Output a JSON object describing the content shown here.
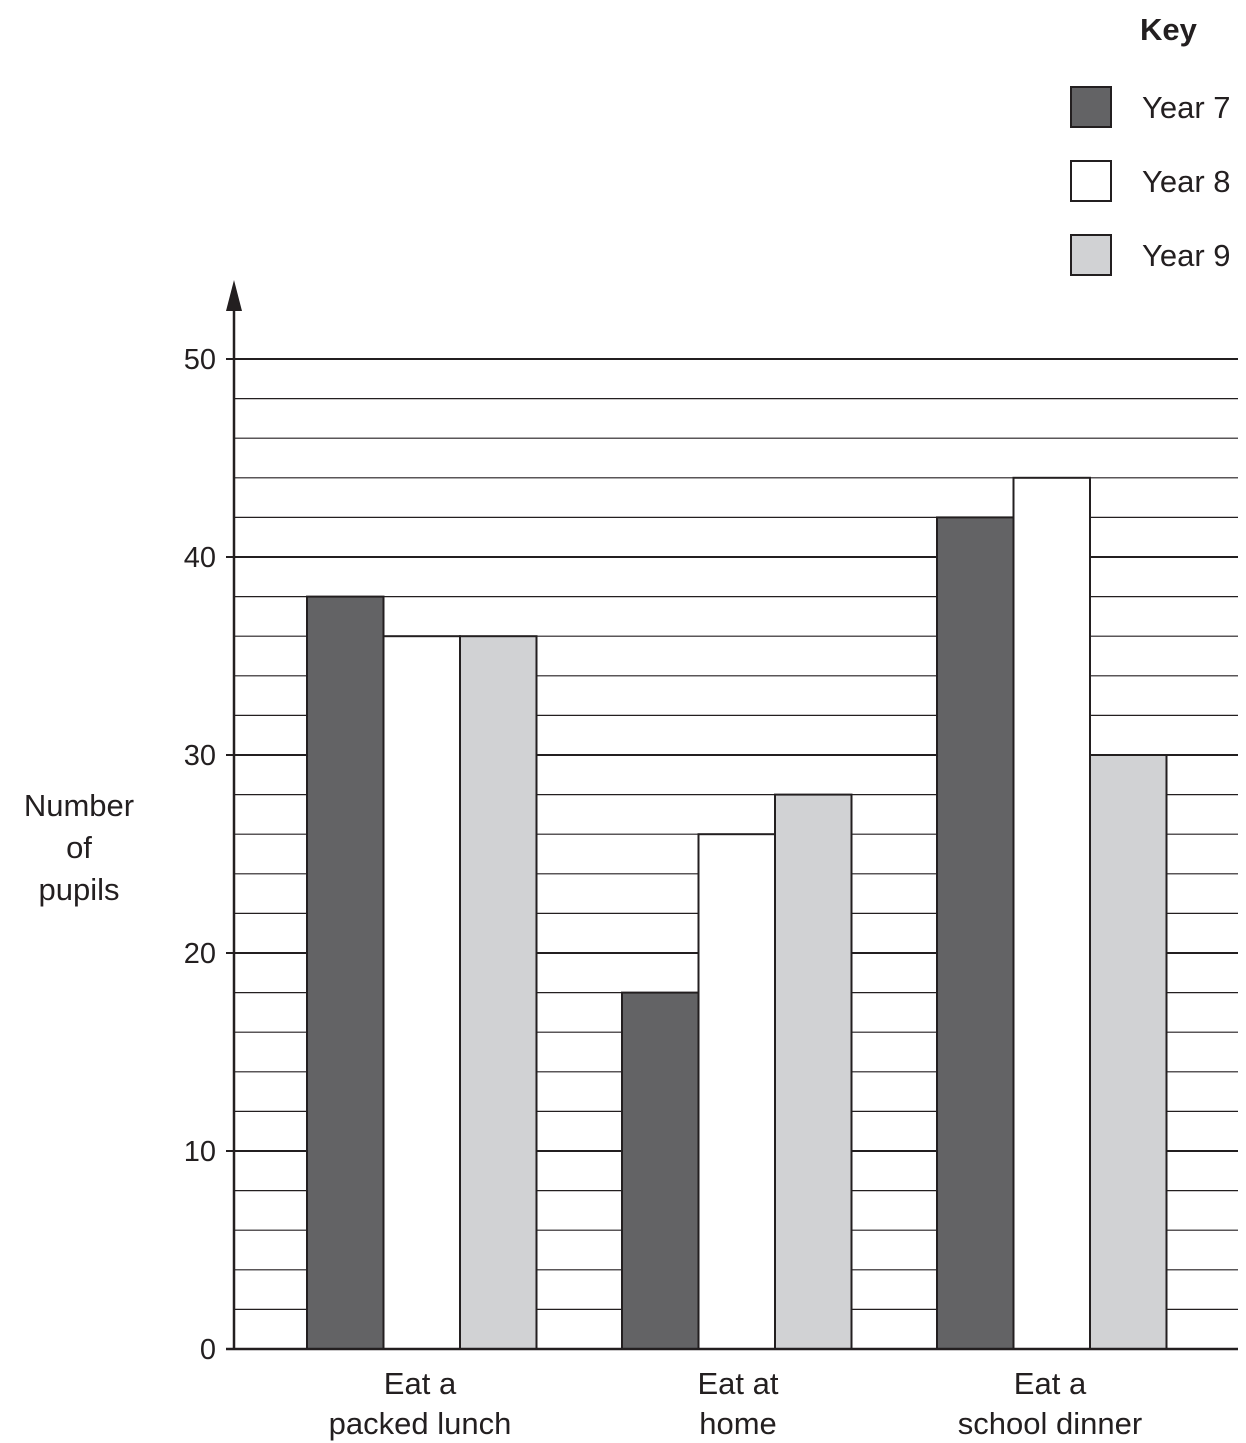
{
  "chart_data": {
    "type": "bar",
    "categories": [
      [
        "Eat a",
        "packed lunch"
      ],
      [
        "Eat at",
        "home"
      ],
      [
        "Eat a",
        "school dinner"
      ]
    ],
    "series": [
      {
        "name": "Year 7",
        "values": [
          38,
          18,
          42
        ],
        "color": "#636365"
      },
      {
        "name": "Year 8",
        "values": [
          36,
          26,
          44
        ],
        "color": "#ffffff"
      },
      {
        "name": "Year 9",
        "values": [
          36,
          28,
          30
        ],
        "color": "#d1d2d4"
      }
    ],
    "ylabel": [
      "Number",
      "of",
      "pupils"
    ],
    "ylim": [
      0,
      50
    ],
    "yticks": [
      0,
      10,
      20,
      30,
      40,
      50
    ],
    "minor_step": 2,
    "grid": true,
    "legend": {
      "title": "Key",
      "position": "top-right"
    }
  }
}
